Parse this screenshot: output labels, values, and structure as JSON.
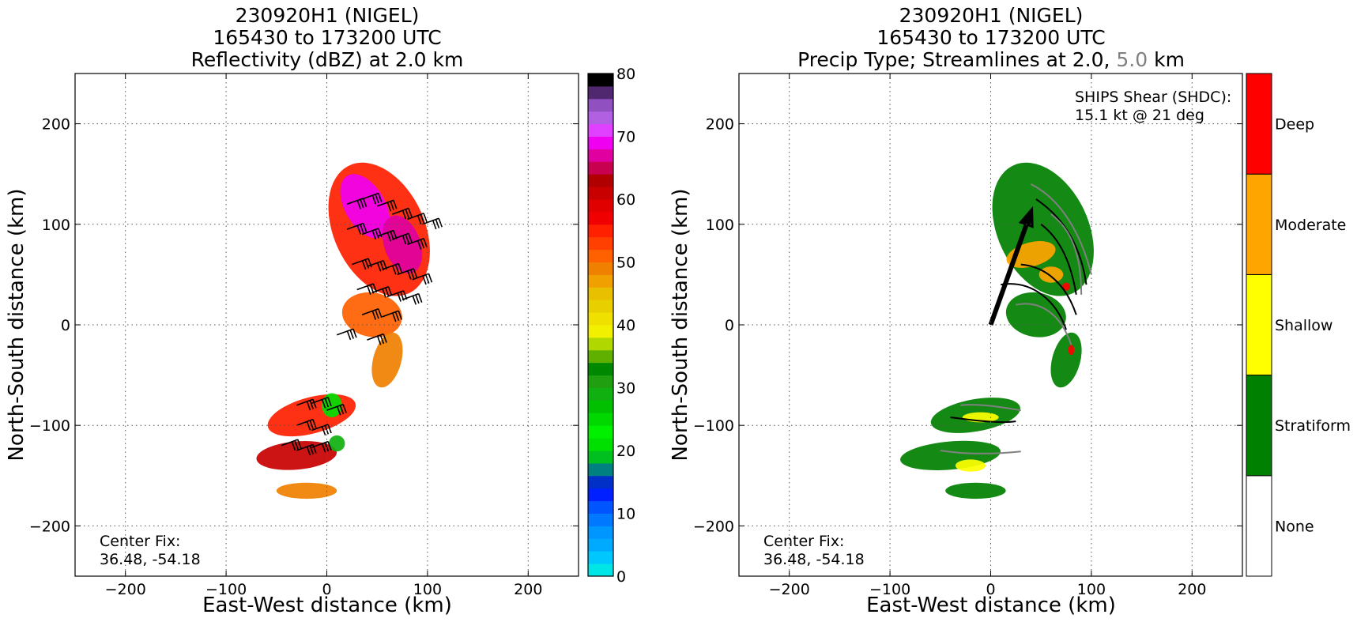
{
  "chart_data": [
    {
      "type": "heatmap",
      "title_lines": [
        "230920H1 (NIGEL)",
        "165430 to 173200 UTC",
        "Reflectivity (dBZ) at 2.0 km"
      ],
      "xlabel": "East-West distance (km)",
      "ylabel": "North-South distance (km)",
      "xlim": [
        -250,
        250
      ],
      "ylim": [
        -250,
        250
      ],
      "xticks": [
        -200,
        -100,
        0,
        100,
        200
      ],
      "yticks": [
        -200,
        -100,
        0,
        100,
        200
      ],
      "xtick_labels": [
        "−200",
        "−100",
        "0",
        "100",
        "200"
      ],
      "ytick_labels": [
        "−200",
        "−100",
        "0",
        "100",
        "200"
      ],
      "grid": true,
      "annotation_lines": [
        "Center Fix:",
        "36.48, -54.18"
      ],
      "colorbar": {
        "min": 0,
        "max": 80,
        "step": 2.5,
        "ticks": [
          0,
          10,
          20,
          30,
          40,
          50,
          60,
          70,
          80
        ],
        "tick_labels": [
          "0",
          "10",
          "20",
          "30",
          "40",
          "50",
          "60",
          "70",
          "80"
        ],
        "colors": [
          "#00e5e5",
          "#00c8ff",
          "#00aaff",
          "#0096ff",
          "#0078ff",
          "#0055ff",
          "#0020ff",
          "#0030c8",
          "#008080",
          "#00c020",
          "#00e000",
          "#00f000",
          "#00d800",
          "#00c000",
          "#10b010",
          "#20a010",
          "#008800",
          "#60b000",
          "#b0d800",
          "#f0f000",
          "#f0e000",
          "#e8d000",
          "#e8c000",
          "#f0a000",
          "#f08000",
          "#ff6000",
          "#ff4000",
          "#ff2000",
          "#f00000",
          "#e00000",
          "#c80000",
          "#b00000",
          "#c80050",
          "#e000a0",
          "#f000f0",
          "#e040ff",
          "#b060e0",
          "#9050c0",
          "#502870",
          "#000000"
        ]
      },
      "regions": [
        {
          "cx": 52,
          "cy": 95,
          "rx": 45,
          "ry": 70,
          "rot": -25,
          "level": 27
        },
        {
          "cx": 38,
          "cy": 118,
          "rx": 20,
          "ry": 35,
          "rot": -30,
          "level": 34
        },
        {
          "cx": 75,
          "cy": 80,
          "rx": 18,
          "ry": 30,
          "rot": -20,
          "level": 33
        },
        {
          "cx": 45,
          "cy": 10,
          "rx": 30,
          "ry": 22,
          "rot": 10,
          "level": 25
        },
        {
          "cx": 60,
          "cy": -35,
          "rx": 14,
          "ry": 28,
          "rot": 15,
          "level": 24
        },
        {
          "cx": -15,
          "cy": -90,
          "rx": 45,
          "ry": 18,
          "rot": -15,
          "level": 27
        },
        {
          "cx": -30,
          "cy": -130,
          "rx": 40,
          "ry": 14,
          "rot": -5,
          "level": 30
        },
        {
          "cx": -20,
          "cy": -165,
          "rx": 30,
          "ry": 8,
          "rot": 0,
          "level": 24
        },
        {
          "cx": 5,
          "cy": -80,
          "rx": 10,
          "ry": 12,
          "rot": 0,
          "level": 10
        },
        {
          "cx": 10,
          "cy": -118,
          "rx": 8,
          "ry": 8,
          "rot": 0,
          "level": 14
        }
      ],
      "barbs_x": [
        20,
        35,
        50,
        65,
        80,
        95,
        20,
        35,
        50,
        65,
        80,
        25,
        40,
        55,
        70,
        85,
        30,
        45,
        60,
        75,
        35,
        55,
        -30,
        -15,
        0,
        -30,
        -15,
        -45,
        -30,
        -15,
        10,
        40
      ],
      "barbs_y": [
        120,
        125,
        118,
        110,
        105,
        100,
        95,
        90,
        88,
        85,
        80,
        60,
        58,
        55,
        50,
        45,
        35,
        32,
        28,
        25,
        10,
        8,
        -80,
        -78,
        -85,
        -100,
        -105,
        -120,
        -125,
        -122,
        -10,
        -15
      ]
    },
    {
      "type": "heatmap",
      "title_lines": [
        "230920H1 (NIGEL)",
        "165430 to 173200 UTC"
      ],
      "title_line3_parts": [
        "Precip Type; Streamlines at 2.0, ",
        "5.0",
        " km"
      ],
      "xlabel": "East-West distance (km)",
      "ylabel": "North-South distance (km)",
      "xlim": [
        -250,
        250
      ],
      "ylim": [
        -250,
        250
      ],
      "xticks": [
        -200,
        -100,
        0,
        100,
        200
      ],
      "yticks": [
        -200,
        -100,
        0,
        100,
        200
      ],
      "xtick_labels": [
        "−200",
        "−100",
        "0",
        "100",
        "200"
      ],
      "ytick_labels": [
        "−200",
        "−100",
        "0",
        "100",
        "200"
      ],
      "grid": true,
      "annotation_lines": [
        "Center Fix:",
        "36.48, -54.18"
      ],
      "shear_lines": [
        "SHIPS Shear (SHDC):",
        "15.1 kt @ 21 deg"
      ],
      "shear_vector": {
        "x": [
          0,
          42
        ],
        "y": [
          0,
          118
        ]
      },
      "colorbar": {
        "categories": [
          "None",
          "Stratiform",
          "Shallow",
          "Moderate",
          "Deep"
        ],
        "colors": [
          "#ffffff",
          "#008000",
          "#ffff00",
          "#ffa500",
          "#ff0000"
        ]
      },
      "regions": [
        {
          "cx": 52,
          "cy": 95,
          "rx": 45,
          "ry": 70,
          "rot": -25,
          "cat": 1
        },
        {
          "cx": 45,
          "cy": 10,
          "rx": 30,
          "ry": 22,
          "rot": 10,
          "cat": 1
        },
        {
          "cx": 75,
          "cy": -35,
          "rx": 14,
          "ry": 28,
          "rot": 15,
          "cat": 1
        },
        {
          "cx": 40,
          "cy": 70,
          "rx": 25,
          "ry": 12,
          "rot": -15,
          "cat": 3
        },
        {
          "cx": 60,
          "cy": 50,
          "rx": 12,
          "ry": 8,
          "rot": 0,
          "cat": 3
        },
        {
          "cx": 75,
          "cy": 38,
          "rx": 4,
          "ry": 4,
          "rot": 0,
          "cat": 4
        },
        {
          "cx": 80,
          "cy": -25,
          "rx": 3,
          "ry": 5,
          "rot": 0,
          "cat": 4
        },
        {
          "cx": -15,
          "cy": -90,
          "rx": 45,
          "ry": 16,
          "rot": -10,
          "cat": 1
        },
        {
          "cx": -10,
          "cy": -92,
          "rx": 18,
          "ry": 5,
          "rot": 0,
          "cat": 2
        },
        {
          "cx": -40,
          "cy": -130,
          "rx": 50,
          "ry": 14,
          "rot": -5,
          "cat": 1
        },
        {
          "cx": -20,
          "cy": -140,
          "rx": 15,
          "ry": 6,
          "rot": 0,
          "cat": 2
        },
        {
          "cx": -15,
          "cy": -165,
          "rx": 30,
          "ry": 8,
          "rot": 0,
          "cat": 1
        }
      ]
    }
  ]
}
